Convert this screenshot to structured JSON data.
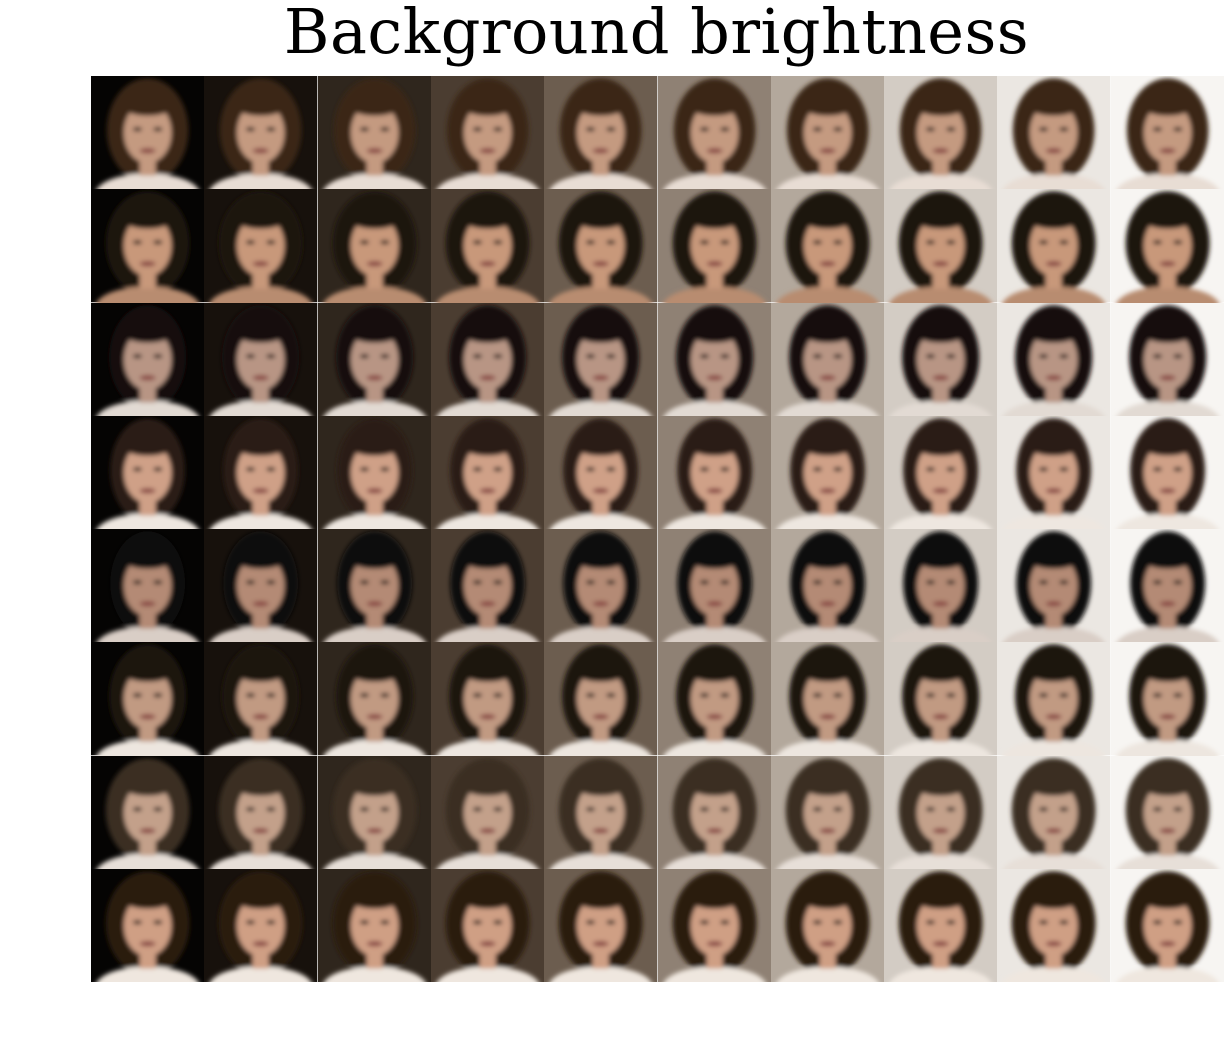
{
  "title": "Background brightness",
  "grid": {
    "rows": 8,
    "cols": 10,
    "background_colors": [
      "#050403",
      "#17110c",
      "#2f261d",
      "#4b3d31",
      "#6c5d4f",
      "#8f8174",
      "#b3a89c",
      "#d3ccc4",
      "#ebe7e2",
      "#f7f5f2"
    ],
    "row_styles": [
      {
        "hair": "#3a2517",
        "skin": "#c49a80",
        "clothes": "#e8ddd4",
        "hair_width": 0.36
      },
      {
        "hair": "#1e140f",
        "skin": "#c8987a",
        "clothes": "#b88c70",
        "hair_width": 0.37
      },
      {
        "hair": "#15110f",
        "skin": "#b89584",
        "clothes": "#e2dad3",
        "hair_width": 0.34
      },
      {
        "hair": "#2a1a12",
        "skin": "#cfa087",
        "clothes": "#eee7e0",
        "hair_width": 0.33
      },
      {
        "hair": "#0e0b0a",
        "skin": "#b48a74",
        "clothes": "#d9cec6",
        "hair_width": 0.33
      },
      {
        "hair": "#1f1611",
        "skin": "#c19a82",
        "clothes": "#ede6df",
        "hair_width": 0.34
      },
      {
        "hair": "#3b2e24",
        "skin": "#c3a08a",
        "clothes": "#e7dfd8",
        "hair_width": 0.37
      },
      {
        "hair": "#2b1a10",
        "skin": "#cf9f84",
        "clothes": "#efe7df",
        "hair_width": 0.37
      }
    ]
  }
}
